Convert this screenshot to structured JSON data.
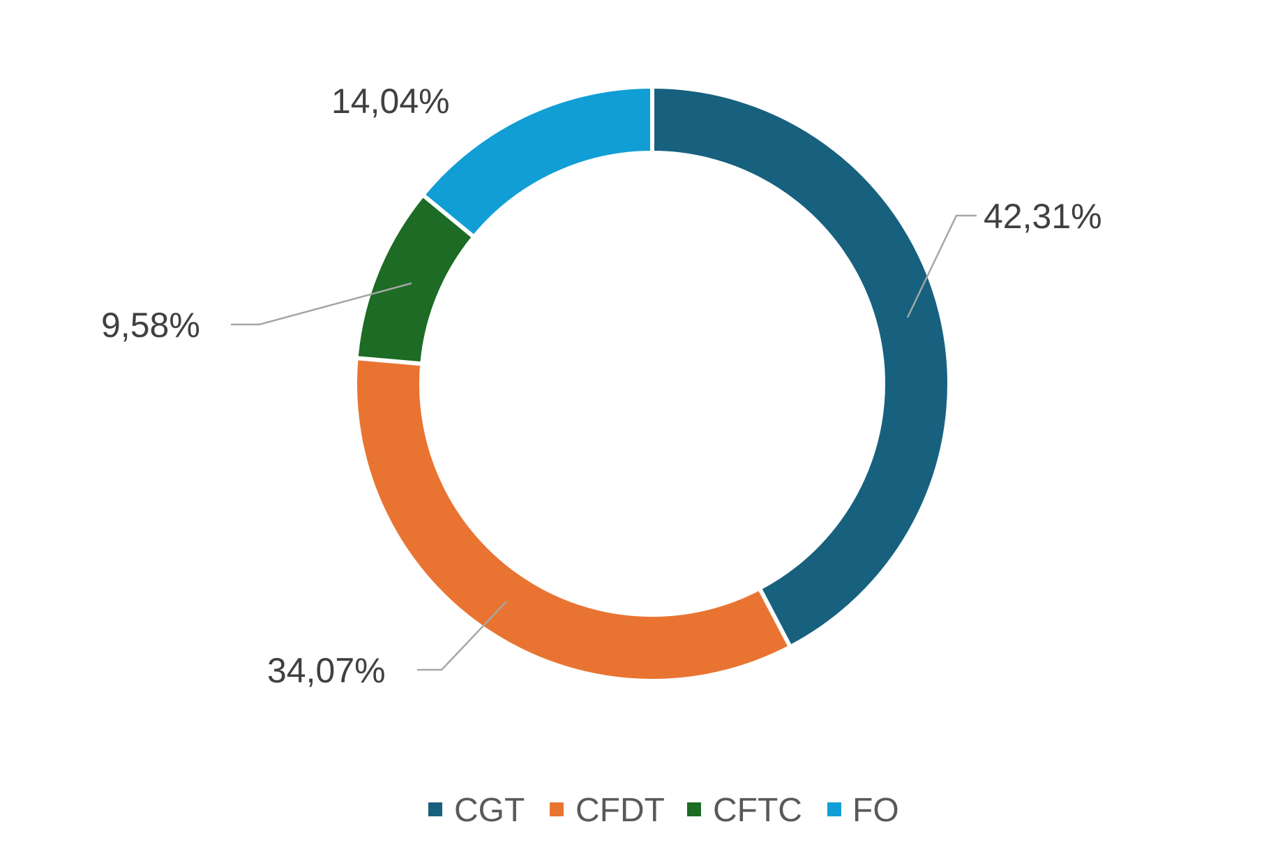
{
  "chart_data": {
    "type": "pie",
    "variant": "donut",
    "title": "",
    "categories": [
      "CGT",
      "CFDT",
      "CFTC",
      "FO"
    ],
    "values": [
      42.31,
      34.07,
      9.58,
      14.04
    ],
    "data_labels": [
      "42,31%",
      "34,07%",
      "9,58%",
      "14,04%"
    ],
    "colors": [
      "#17617f",
      "#e97432",
      "#1d6b25",
      "#119ed5"
    ],
    "legend": {
      "position": "bottom",
      "entries": [
        "CGT",
        "CFDT",
        "CFTC",
        "FO"
      ]
    },
    "start_angle_deg": 0,
    "direction": "clockwise"
  }
}
